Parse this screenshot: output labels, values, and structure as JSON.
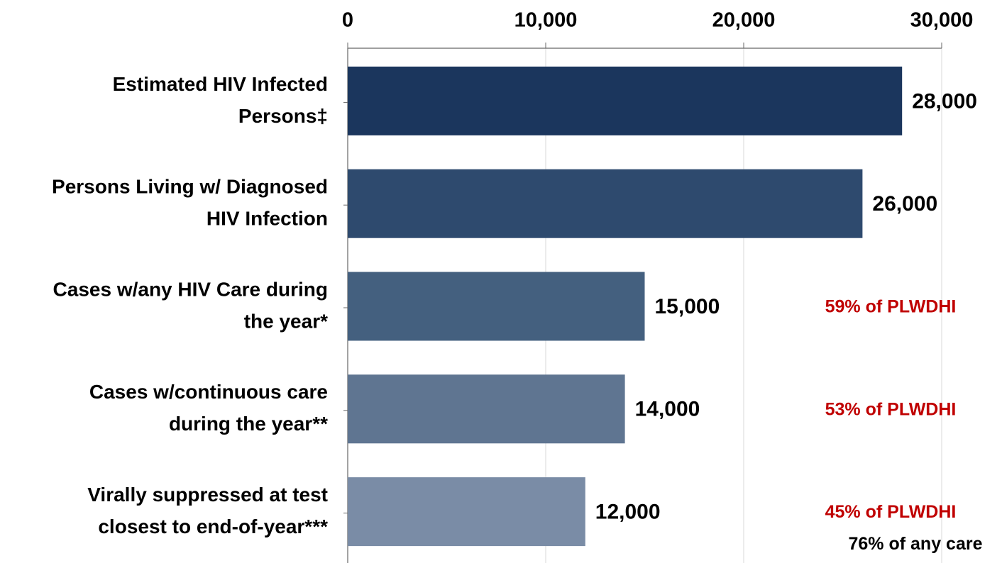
{
  "chart_data": {
    "type": "hbar",
    "categories": [
      [
        "Estimated HIV Infected",
        "Persons‡"
      ],
      [
        "Persons Living w/ Diagnosed",
        "HIV Infection"
      ],
      [
        "Cases w/any HIV Care during",
        "the year*"
      ],
      [
        "Cases w/continuous care",
        "during the year**"
      ],
      [
        "Virally suppressed at test",
        "closest to end-of-year***"
      ]
    ],
    "values": [
      28000,
      26000,
      15000,
      14000,
      12000
    ],
    "value_labels": [
      "28,000",
      "26,000",
      "15,000",
      "14,000",
      "12,000"
    ],
    "colors": [
      "#1b365d",
      "#2e4a6e",
      "#44607f",
      "#5f7591",
      "#7a8ca6"
    ],
    "annotations": [
      [],
      [],
      [
        "59% of PLWDHI"
      ],
      [
        "53% of PLWDHI"
      ],
      [
        "45% of PLWDHI",
        "76% of any care"
      ]
    ],
    "xlim": [
      0,
      30000
    ],
    "xticks": [
      0,
      {
        "value": 10000,
        "label": "10,000"
      },
      {
        "value": 20000,
        "label": "20,000"
      },
      {
        "value": 30000,
        "label": "30,000"
      }
    ],
    "grid": true
  }
}
